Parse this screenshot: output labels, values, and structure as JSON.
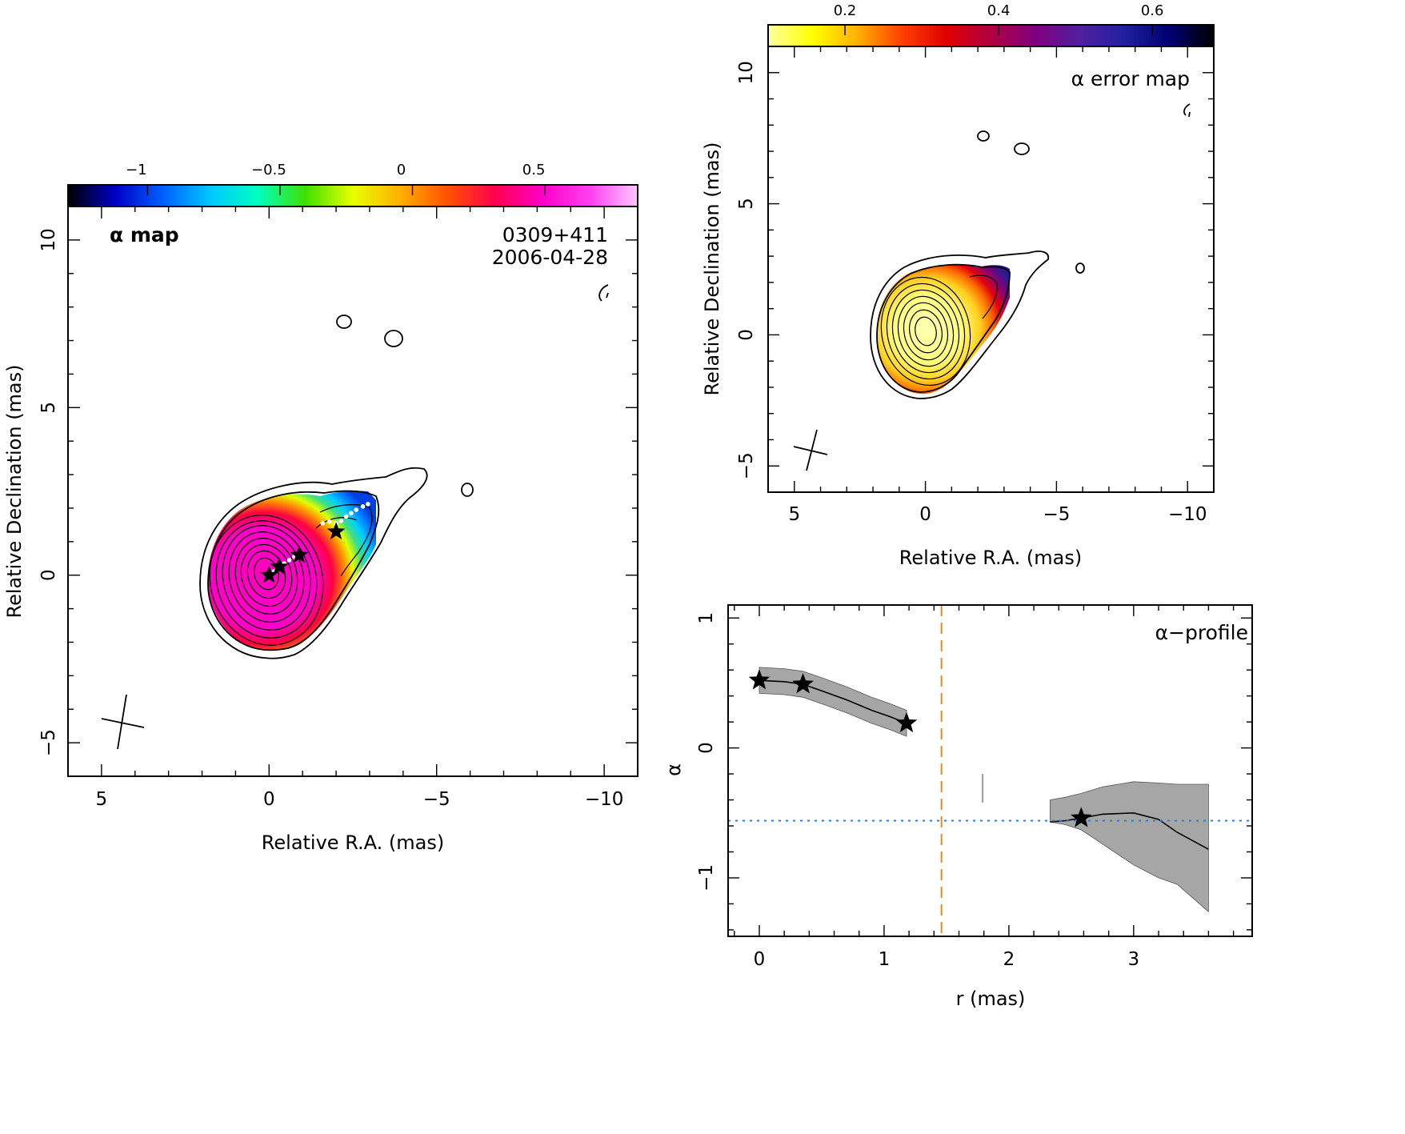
{
  "chart_data": [
    {
      "type": "heatmap",
      "panel": "alpha-map",
      "label": "α map",
      "source": "0309+411",
      "date": "2006-04-28",
      "xlabel": "Relative R.A. (mas)",
      "ylabel": "Relative Declination (mas)",
      "xlim": [
        6,
        -11
      ],
      "ylim": [
        -6,
        11
      ],
      "xticks": [
        5,
        0,
        -5,
        -10
      ],
      "yticks": [
        -5,
        0,
        5,
        10
      ],
      "x_tick_labels": [
        "5",
        "0",
        "−5",
        "−10"
      ],
      "y_tick_labels": [
        "−5",
        "0",
        "5",
        "10"
      ],
      "colorbar": {
        "range": [
          -1.3,
          0.85
        ],
        "ticks": [
          -1,
          -0.5,
          0,
          0.5
        ],
        "tick_labels": [
          "−1",
          "−0.5",
          "0",
          "0.5"
        ],
        "colors": [
          "#000000",
          "#0000c8",
          "#0060ff",
          "#00c8ff",
          "#00ffc0",
          "#40e000",
          "#e8ff00",
          "#ffb000",
          "#ff5000",
          "#ff0050",
          "#ff00c8",
          "#ff40f0",
          "#ffc8ff"
        ]
      },
      "ridge_stars": [
        {
          "x": 0.0,
          "y": 0.0
        },
        {
          "x": -0.3,
          "y": 0.25
        },
        {
          "x": -0.9,
          "y": 0.6
        },
        {
          "x": -2.0,
          "y": 1.3
        }
      ],
      "grid": false
    },
    {
      "type": "heatmap",
      "panel": "alpha-error-map",
      "label": "α error map",
      "xlabel": "Relative R.A. (mas)",
      "ylabel": "Relative Declination (mas)",
      "xlim": [
        6,
        -11
      ],
      "ylim": [
        -6,
        11
      ],
      "xticks": [
        5,
        0,
        -5,
        -10
      ],
      "yticks": [
        -5,
        0,
        5,
        10
      ],
      "x_tick_labels": [
        "5",
        "0",
        "−5",
        "−10"
      ],
      "y_tick_labels": [
        "−5",
        "0",
        "5",
        "10"
      ],
      "colorbar": {
        "range": [
          0.1,
          0.68
        ],
        "ticks": [
          0.2,
          0.4,
          0.6
        ],
        "tick_labels": [
          "0.2",
          "0.4",
          "0.6"
        ],
        "colors": [
          "#ffffa0",
          "#ffff00",
          "#ffb000",
          "#ff4000",
          "#e00000",
          "#b00040",
          "#800080",
          "#5020a0",
          "#2020a0",
          "#000070",
          "#000000"
        ]
      },
      "grid": false
    },
    {
      "type": "line",
      "panel": "alpha-profile",
      "label": "α−profile",
      "xlabel": "r (mas)",
      "ylabel": "α",
      "xlim": [
        -0.25,
        3.95
      ],
      "ylim": [
        -1.45,
        1.1
      ],
      "xticks": [
        0,
        1,
        2,
        3
      ],
      "yticks": [
        -1,
        0,
        1
      ],
      "x_tick_labels": [
        "0",
        "1",
        "2",
        "3"
      ],
      "y_tick_labels": [
        "−1",
        "0",
        "1"
      ],
      "series": [
        {
          "x": [
            0.0,
            0.2,
            0.35,
            0.5,
            0.7,
            0.9,
            1.05,
            1.18
          ],
          "y": [
            0.52,
            0.51,
            0.49,
            0.44,
            0.37,
            0.29,
            0.24,
            0.19
          ],
          "err_low": [
            0.42,
            0.41,
            0.39,
            0.34,
            0.27,
            0.19,
            0.14,
            0.09
          ],
          "err_high": [
            0.62,
            0.61,
            0.59,
            0.54,
            0.47,
            0.39,
            0.34,
            0.29
          ]
        },
        {
          "x": [
            2.33,
            2.45,
            2.58,
            2.75,
            3.0,
            3.2,
            3.35,
            3.6
          ],
          "y": [
            -0.57,
            -0.56,
            -0.54,
            -0.51,
            -0.5,
            -0.55,
            -0.65,
            -0.78
          ],
          "err_low": [
            -0.57,
            -0.59,
            -0.63,
            -0.74,
            -0.9,
            -1.0,
            -1.05,
            -1.26
          ],
          "err_high": [
            -0.4,
            -0.38,
            -0.35,
            -0.3,
            -0.26,
            -0.27,
            -0.28,
            -0.28
          ]
        }
      ],
      "stars": [
        {
          "x": 0.0,
          "y": 0.52
        },
        {
          "x": 0.35,
          "y": 0.49
        },
        {
          "x": 1.18,
          "y": 0.19
        },
        {
          "x": 2.58,
          "y": -0.54
        }
      ],
      "hline": -0.56,
      "vline": 1.46,
      "resolution_bar": {
        "x": 1.79,
        "y": [
          -0.2,
          -0.42
        ]
      },
      "hline_color": "#2a7fd6",
      "vline_color": "#e08a2a",
      "band_color": "#a6a6a6",
      "grid": false
    }
  ]
}
